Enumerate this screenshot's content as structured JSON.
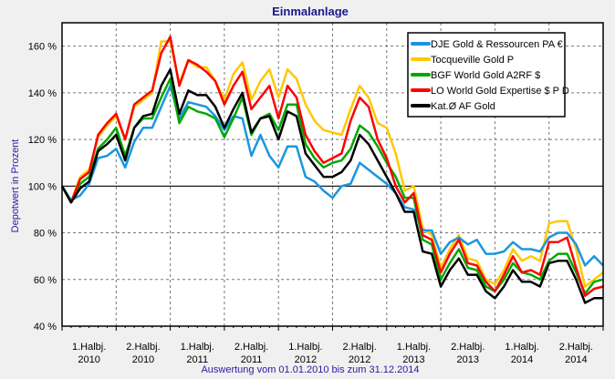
{
  "chart_data": {
    "type": "line",
    "title": "Einmalanlage",
    "ylabel": "Depotwert in Prozent",
    "xlabel": "Auswertung vom 01.01.2010 bis zum 31.12.2014",
    "ylim": [
      40,
      170
    ],
    "yticks": [
      "40 %",
      "60 %",
      "80 %",
      "100 %",
      "120 %",
      "140 %",
      "160 %"
    ],
    "ytick_values": [
      40,
      60,
      80,
      100,
      120,
      140,
      160
    ],
    "reference_line": 100,
    "x_unit": "months since 01.01.2010",
    "xlim": [
      0,
      60
    ],
    "xtick_labels": [
      [
        "1.Halbj.",
        "2010"
      ],
      [
        "2.Halbj.",
        "2010"
      ],
      [
        "1.Halbj.",
        "2011"
      ],
      [
        "2.Halbj.",
        "2011"
      ],
      [
        "1.Halbj.",
        "2012"
      ],
      [
        "2.Halbj.",
        "2012"
      ],
      [
        "1.Halbj.",
        "2013"
      ],
      [
        "2.Halbj.",
        "2013"
      ],
      [
        "1.Halbj.",
        "2014"
      ],
      [
        "2.Halbj.",
        "2014"
      ]
    ],
    "grid": true,
    "legend_placement": "top-right",
    "series": [
      {
        "name": "DJE Gold & Ressourcen PA €",
        "color": "#1a96e0",
        "values": [
          100,
          94,
          96,
          101,
          112,
          113,
          116,
          108,
          119,
          125,
          125,
          134,
          143,
          129,
          136,
          135,
          134,
          130,
          124,
          130,
          129,
          113,
          122,
          113,
          108,
          117,
          117,
          104,
          102,
          98,
          95,
          100,
          101,
          110,
          107,
          104,
          101,
          97,
          91,
          90,
          81,
          81,
          71,
          76,
          78,
          75,
          77,
          71,
          71,
          72,
          76,
          73,
          73,
          72,
          78,
          80,
          80,
          75,
          66,
          70,
          66
        ]
      },
      {
        "name": "Tocqueville Gold P",
        "color": "#ffc800",
        "values": [
          100,
          93,
          104,
          107,
          121,
          126,
          130,
          120,
          134,
          137,
          140,
          162,
          162,
          144,
          154,
          151,
          151,
          145,
          137,
          148,
          153,
          137,
          145,
          150,
          138,
          150,
          146,
          135,
          128,
          124,
          123,
          122,
          133,
          143,
          138,
          127,
          125,
          114,
          98,
          100,
          82,
          79,
          65,
          73,
          79,
          69,
          68,
          60,
          58,
          64,
          73,
          68,
          70,
          68,
          84,
          85,
          85,
          73,
          57,
          60,
          63
        ]
      },
      {
        "name": "BGF World Gold A2RF $",
        "color": "#00a800",
        "values": [
          100,
          93,
          101,
          104,
          116,
          120,
          125,
          113,
          125,
          129,
          129,
          138,
          146,
          127,
          134,
          132,
          131,
          129,
          121,
          129,
          138,
          122,
          129,
          131,
          124,
          135,
          135,
          118,
          112,
          108,
          110,
          111,
          116,
          126,
          123,
          117,
          110,
          104,
          95,
          95,
          77,
          75,
          60,
          67,
          73,
          65,
          64,
          57,
          55,
          60,
          67,
          63,
          62,
          60,
          68,
          71,
          71,
          63,
          54,
          59,
          60
        ]
      },
      {
        "name": "LO World Gold Expertise $ P D",
        "color": "#ff0000",
        "values": [
          100,
          93,
          103,
          106,
          122,
          127,
          131,
          120,
          135,
          138,
          141,
          157,
          164,
          143,
          154,
          152,
          149,
          145,
          135,
          143,
          149,
          133,
          138,
          143,
          129,
          143,
          138,
          122,
          115,
          110,
          112,
          114,
          128,
          138,
          134,
          120,
          112,
          100,
          93,
          97,
          79,
          77,
          63,
          71,
          77,
          67,
          66,
          59,
          55,
          62,
          70,
          63,
          64,
          62,
          76,
          76,
          78,
          65,
          53,
          56,
          57
        ]
      },
      {
        "name": "Kat.Ø AF Gold",
        "color": "#000000",
        "values": [
          100,
          93,
          99,
          102,
          115,
          118,
          122,
          111,
          125,
          130,
          131,
          143,
          150,
          131,
          141,
          139,
          139,
          134,
          125,
          133,
          140,
          123,
          129,
          130,
          120,
          132,
          130,
          114,
          109,
          104,
          104,
          106,
          111,
          122,
          118,
          111,
          104,
          97,
          89,
          89,
          72,
          71,
          57,
          64,
          69,
          62,
          62,
          55,
          52,
          57,
          64,
          59,
          59,
          57,
          67,
          68,
          68,
          60,
          50,
          52,
          52
        ]
      }
    ]
  }
}
